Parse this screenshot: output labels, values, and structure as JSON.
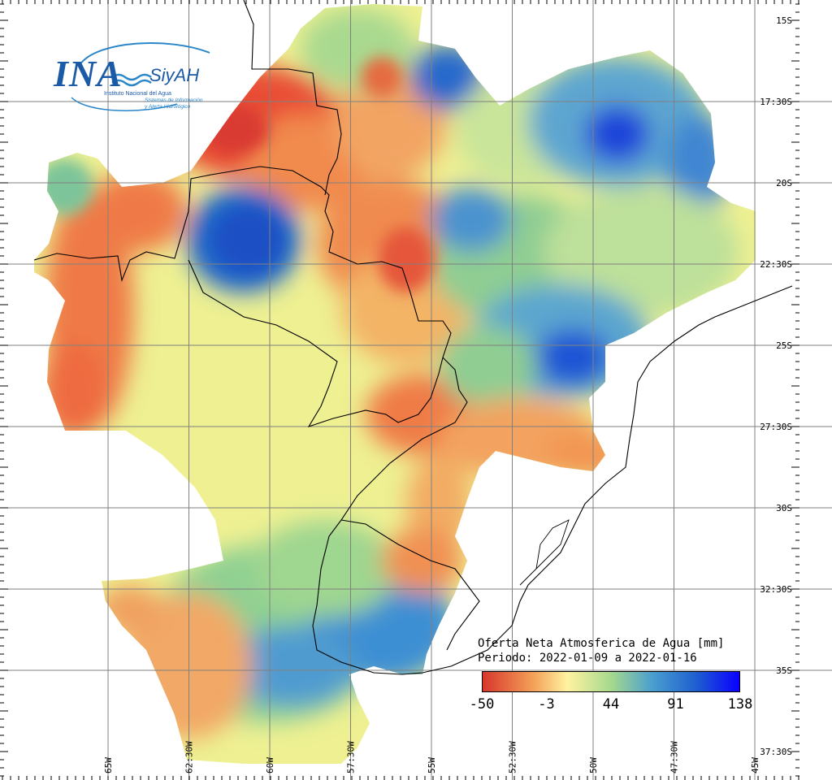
{
  "legend": {
    "title": "Oferta Neta Atmosferica de Agua [mm]",
    "period": "Periodo: 2022-01-09 a 2022-01-16",
    "min": -50,
    "max": 138,
    "tick_labels": [
      "-50",
      "-3",
      "44",
      "91",
      "138"
    ],
    "colors": [
      "#d7362b",
      "#f4a259",
      "#fff3a0",
      "#a6d98e",
      "#4a9fcf",
      "#1f5fcf",
      "#0a00ff"
    ]
  },
  "axes": {
    "lat_labels": [
      "15S",
      "17:30S",
      "20S",
      "22:30S",
      "25S",
      "27:30S",
      "30S",
      "32:30S",
      "35S",
      "37:30S"
    ],
    "lon_labels": [
      "65W",
      "62:30W",
      "60W",
      "57:30W",
      "55W",
      "52:30W",
      "50W",
      "47:30W",
      "45W"
    ]
  },
  "logo": {
    "name": "INA",
    "brand": "SiyAH",
    "org": "Instituto Nacional del Agua",
    "subtitle_1": "Sistemas de Información",
    "subtitle_2": "y Alerta Hidrológico"
  },
  "colors": {
    "dry": "#e34a33",
    "neutral": "#f4ee8e",
    "wet": "#2a6fd0",
    "grid": "#808080",
    "border": "#000000"
  }
}
